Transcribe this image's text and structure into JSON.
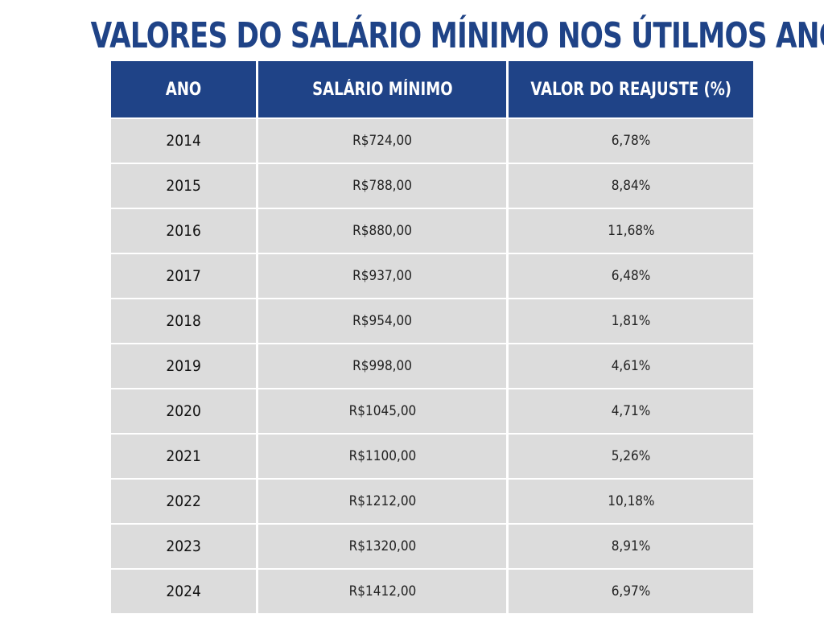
{
  "title": "VALORES DO SALÁRIO MÍNIMO NOS ÚTILMOS ANOS",
  "table": {
    "headers": [
      "ANO",
      "SALÁRIO MÍNIMO",
      "VALOR DO REAJUSTE (%)"
    ],
    "rows": [
      {
        "ano": "2014",
        "salario": "R$724,00",
        "reajuste": "6,78%"
      },
      {
        "ano": "2015",
        "salario": "R$788,00",
        "reajuste": "8,84%"
      },
      {
        "ano": "2016",
        "salario": "R$880,00",
        "reajuste": "11,68%"
      },
      {
        "ano": "2017",
        "salario": "R$937,00",
        "reajuste": "6,48%"
      },
      {
        "ano": "2018",
        "salario": "R$954,00",
        "reajuste": "1,81%"
      },
      {
        "ano": "2019",
        "salario": "R$998,00",
        "reajuste": "4,61%"
      },
      {
        "ano": "2020",
        "salario": "R$1045,00",
        "reajuste": "4,71%"
      },
      {
        "ano": "2021",
        "salario": "R$1100,00",
        "reajuste": "5,26%"
      },
      {
        "ano": "2022",
        "salario": "R$1212,00",
        "reajuste": "10,18%"
      },
      {
        "ano": "2023",
        "salario": "R$1320,00",
        "reajuste": "8,91%"
      },
      {
        "ano": "2024",
        "salario": "R$1412,00",
        "reajuste": "6,97%"
      }
    ]
  },
  "colors": {
    "header_bg": "#1f4387",
    "title": "#1f4387",
    "row_bg": "#dcdcdc",
    "background": "#ffffff"
  }
}
